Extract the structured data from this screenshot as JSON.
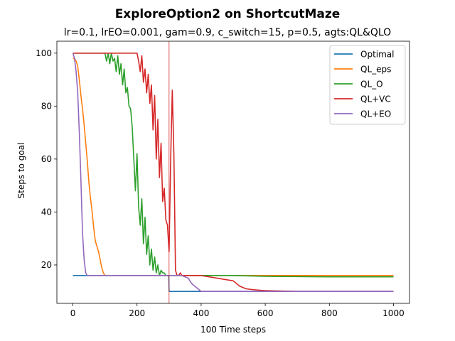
{
  "chart_data": {
    "type": "line",
    "title": "ExploreOption2 on ShortcutMaze",
    "subtitle": "lr=0.1, lrEO=0.001, gam=0.9, c_switch=15, p=0.5, agts:QL&QLO",
    "xlabel": "100 Time steps",
    "ylabel": "Steps to goal",
    "xlim": [
      -50,
      1050
    ],
    "ylim": [
      5.5,
      104.5
    ],
    "xticks": [
      0,
      200,
      400,
      600,
      800,
      1000
    ],
    "yticks": [
      20,
      40,
      60,
      80,
      100
    ],
    "grid": false,
    "legend_position": "top-right",
    "annotations": [
      {
        "type": "vertical-line",
        "x": 300,
        "color": "#d62728"
      }
    ],
    "series": [
      {
        "name": "Optimal",
        "color": "#1f77b4",
        "x": [
          0,
          299,
          300,
          1000
        ],
        "y": [
          16,
          16,
          10,
          10
        ]
      },
      {
        "name": "QL_eps",
        "color": "#ff7f0e",
        "x": [
          0,
          5,
          10,
          15,
          20,
          25,
          30,
          35,
          40,
          45,
          50,
          55,
          60,
          65,
          70,
          75,
          80,
          85,
          90,
          95,
          100,
          150,
          200,
          250,
          300,
          400,
          500,
          600,
          700,
          800,
          900,
          1000
        ],
        "y": [
          98,
          98,
          97,
          95,
          90,
          84,
          79,
          73,
          66,
          59,
          51,
          45,
          40,
          34,
          29,
          27,
          25,
          22,
          19,
          17,
          16,
          16,
          16,
          16,
          16,
          16,
          16,
          16,
          16,
          16,
          16,
          16
        ]
      },
      {
        "name": "QL_O",
        "color": "#2ca02c",
        "x": [
          0,
          50,
          100,
          105,
          110,
          115,
          120,
          125,
          130,
          135,
          140,
          145,
          150,
          155,
          160,
          165,
          170,
          175,
          180,
          185,
          190,
          195,
          200,
          205,
          210,
          215,
          220,
          225,
          230,
          235,
          240,
          245,
          250,
          255,
          260,
          265,
          270,
          275,
          280,
          285,
          290,
          295,
          300,
          400,
          500,
          600,
          700,
          800,
          900,
          1000
        ],
        "y": [
          100,
          100,
          100,
          97,
          100,
          96,
          100,
          97,
          98,
          93,
          99,
          92,
          96,
          88,
          94,
          85,
          87,
          80,
          79,
          72,
          60,
          48,
          62,
          42,
          35,
          45,
          28,
          38,
          24,
          31,
          20,
          26,
          18,
          23,
          17,
          20,
          16,
          18,
          17,
          17,
          16,
          16,
          16,
          16,
          16,
          15.7,
          15.6,
          15.5,
          15.5,
          15.5
        ]
      },
      {
        "name": "QL+VC",
        "color": "#d62728",
        "x": [
          0,
          100,
          150,
          200,
          205,
          210,
          215,
          220,
          225,
          230,
          235,
          240,
          245,
          250,
          255,
          260,
          265,
          270,
          275,
          280,
          285,
          290,
          295,
          300,
          305,
          310,
          315,
          320,
          325,
          330,
          335,
          340,
          350,
          360,
          370,
          380,
          390,
          400,
          450,
          500,
          520,
          540,
          560,
          580,
          600,
          700,
          800,
          900,
          1000
        ],
        "y": [
          100,
          100,
          100,
          100,
          97,
          93,
          99,
          89,
          94,
          85,
          92,
          81,
          88,
          71,
          84,
          60,
          75,
          53,
          66,
          44,
          49,
          37,
          35,
          25,
          60,
          86,
          62,
          18,
          16,
          16,
          17,
          16,
          16,
          16,
          16,
          16,
          16,
          16,
          15,
          14,
          12,
          11,
          10.7,
          10.5,
          10.3,
          10,
          10,
          10,
          10
        ]
      },
      {
        "name": "QL+EO",
        "color": "#9467bd",
        "x": [
          0,
          5,
          10,
          15,
          20,
          25,
          30,
          35,
          40,
          45,
          50,
          100,
          200,
          300,
          340,
          360,
          370,
          380,
          390,
          400,
          500,
          600,
          700,
          800,
          900,
          1000
        ],
        "y": [
          100,
          98,
          93,
          85,
          70,
          52,
          32,
          22,
          17,
          16,
          16,
          16,
          16,
          16,
          16,
          15,
          13,
          12,
          11,
          10,
          10,
          10,
          10,
          10,
          10,
          10
        ]
      }
    ]
  }
}
